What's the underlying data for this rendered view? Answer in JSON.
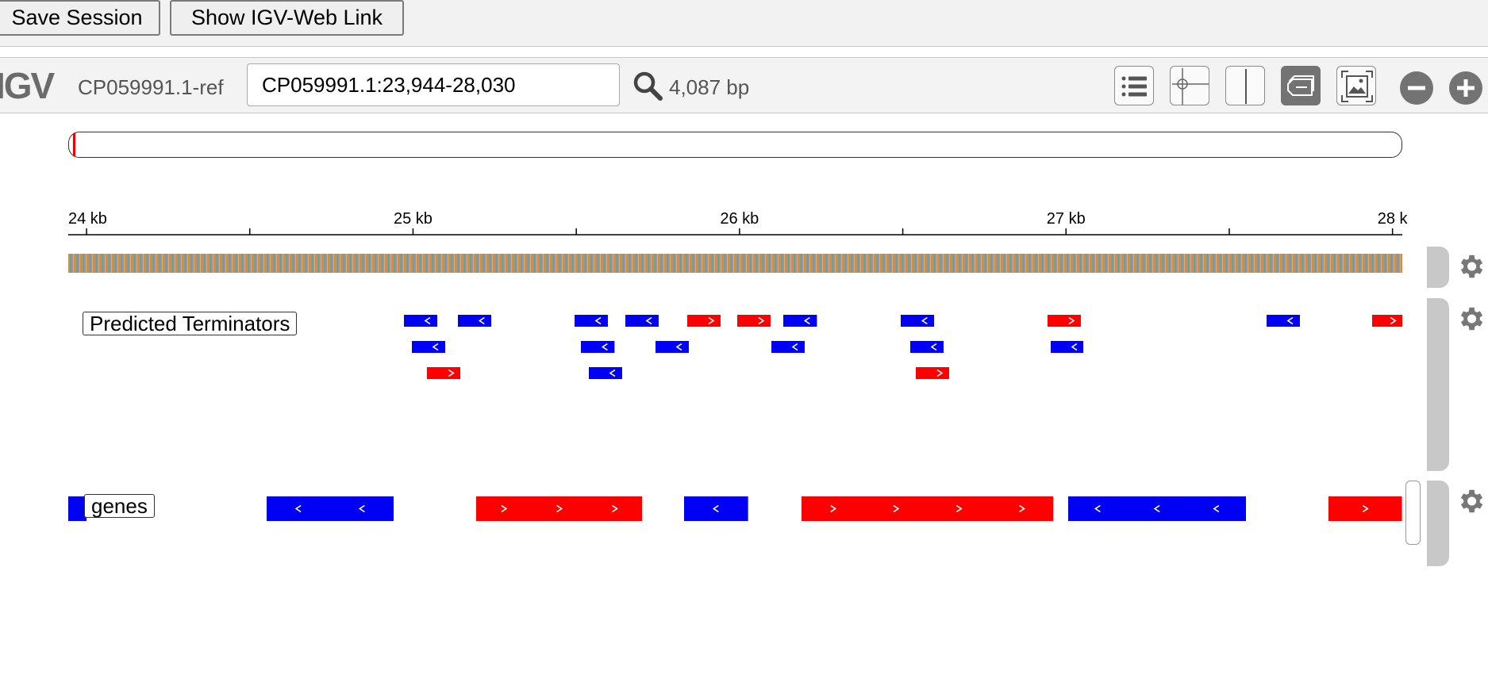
{
  "toolbar": {
    "save_session_label": "Save Session",
    "show_link_label": "Show IGV-Web Link"
  },
  "navbar": {
    "logo": "IGV",
    "genome": "CP059991.1-ref",
    "locus": "CP059991.1:23,944-28,030",
    "bp_width": "4,087 bp",
    "icons": [
      "track-list-icon",
      "crosshair-icon",
      "center-line-icon",
      "track-labels-icon",
      "screenshot-icon",
      "zoom-out-icon",
      "zoom-in-icon"
    ]
  },
  "ruler": {
    "ticks": [
      {
        "kb": 24,
        "label": "24 kb"
      },
      {
        "kb": 25,
        "label": "25 kb"
      },
      {
        "kb": 26,
        "label": "26 kb"
      },
      {
        "kb": 27,
        "label": "27 kb"
      },
      {
        "kb": 28,
        "label": "28 k"
      }
    ],
    "minor_ticks_kb": [
      24.5,
      25.5,
      26.5,
      27.5
    ],
    "range_bp": [
      23944,
      28030
    ]
  },
  "tracks": {
    "terminators": {
      "name": "Predicted Terminators",
      "features": [
        {
          "start": 24973,
          "end": 25075,
          "strand": "-",
          "row": 0
        },
        {
          "start": 25137,
          "end": 25240,
          "strand": "-",
          "row": 0
        },
        {
          "start": 25495,
          "end": 25597,
          "strand": "-",
          "row": 0
        },
        {
          "start": 25651,
          "end": 25753,
          "strand": "-",
          "row": 0
        },
        {
          "start": 25839,
          "end": 25941,
          "strand": "+",
          "row": 0
        },
        {
          "start": 25993,
          "end": 26095,
          "strand": "+",
          "row": 0
        },
        {
          "start": 26135,
          "end": 26238,
          "strand": "-",
          "row": 0
        },
        {
          "start": 26493,
          "end": 26596,
          "strand": "-",
          "row": 0
        },
        {
          "start": 26943,
          "end": 27045,
          "strand": "+",
          "row": 0
        },
        {
          "start": 27614,
          "end": 27716,
          "strand": "-",
          "row": 0
        },
        {
          "start": 27937,
          "end": 28030,
          "strand": "+",
          "row": 0
        },
        {
          "start": 24997,
          "end": 25099,
          "strand": "-",
          "row": 1
        },
        {
          "start": 25515,
          "end": 25618,
          "strand": "-",
          "row": 1
        },
        {
          "start": 25742,
          "end": 25844,
          "strand": "-",
          "row": 1
        },
        {
          "start": 26098,
          "end": 26200,
          "strand": "-",
          "row": 1
        },
        {
          "start": 26522,
          "end": 26624,
          "strand": "-",
          "row": 1
        },
        {
          "start": 26952,
          "end": 27054,
          "strand": "-",
          "row": 1
        },
        {
          "start": 25043,
          "end": 25146,
          "strand": "+",
          "row": 2
        },
        {
          "start": 25538,
          "end": 25640,
          "strand": "-",
          "row": 2
        },
        {
          "start": 26540,
          "end": 26642,
          "strand": "+",
          "row": 2
        }
      ]
    },
    "genes": {
      "name": "genes",
      "features": [
        {
          "start": 23944,
          "end": 24000,
          "strand": "-"
        },
        {
          "start": 24551,
          "end": 24941,
          "strand": "-"
        },
        {
          "start": 25193,
          "end": 25702,
          "strand": "+"
        },
        {
          "start": 25830,
          "end": 26026,
          "strand": "-"
        },
        {
          "start": 26191,
          "end": 26962,
          "strand": "+"
        },
        {
          "start": 27007,
          "end": 27552,
          "strand": "-"
        },
        {
          "start": 27805,
          "end": 28030,
          "strand": "+"
        }
      ]
    }
  },
  "colors": {
    "minus_strand": "#0000f5",
    "plus_strand": "#ff0000",
    "ideogram_marker": "#ee0000"
  }
}
